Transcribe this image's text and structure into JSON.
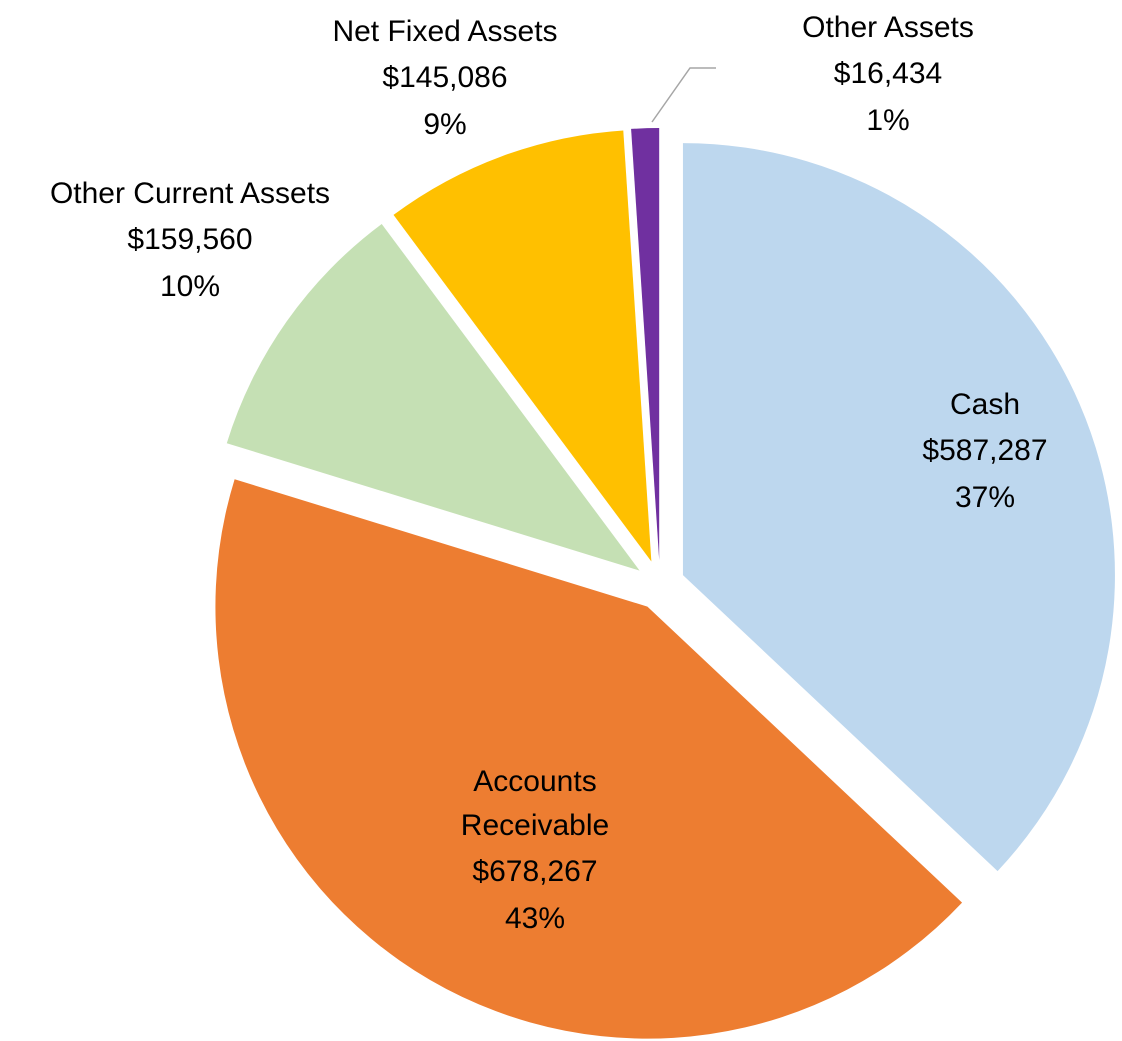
{
  "chart_data": {
    "type": "pie",
    "categories": [
      "Cash",
      "Accounts Receivable",
      "Other Current Assets",
      "Net Fixed Assets",
      "Other Assets"
    ],
    "values": [
      587287,
      678267,
      159560,
      145086,
      16434
    ],
    "value_labels": [
      "$587,287",
      "$678,267",
      "$159,560",
      "$145,086",
      "$16,434"
    ],
    "percent_labels": [
      "37%",
      "43%",
      "10%",
      "9%",
      "1%"
    ],
    "colors": [
      "#bdd7ee",
      "#ed7d31",
      "#c5e0b4",
      "#ffc000",
      "#7030a0"
    ]
  }
}
